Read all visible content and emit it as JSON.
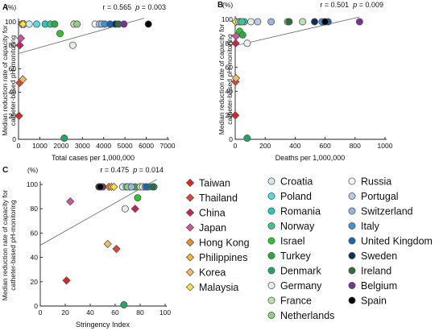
{
  "figure": {
    "ylabel_line1": "Median reduction rate of capacity for",
    "ylabel_line2": "catheter-based pH-monitoring",
    "y_unit": "(%)",
    "stat_r_label": "r = ",
    "stat_p_label": "p",
    "stat_p_eq": " = "
  },
  "colors": {
    "Taiwan": "#e8201e",
    "Thailand": "#e2452f",
    "China": "#cf1d5a",
    "Japan": "#d2539f",
    "Hong Kong": "#f08c21",
    "Philippines": "#f6b33a",
    "Korea": "#f3bb66",
    "Malaysia": "#f6e447",
    "Croatia": "#c9eff2",
    "Poland": "#58d6e2",
    "Romania": "#27c9b8",
    "Norway": "#36c78d",
    "Israel": "#2ec431",
    "Turkey": "#2aa945",
    "Denmark": "#21a565",
    "Germany": "#e4f0e0",
    "France": "#bde0ab",
    "Netherlands": "#8fcf82",
    "Russia": "#f2f2f2",
    "Portugal": "#b8cbe6",
    "Switzerland": "#97b5df",
    "Italy": "#3f93d3",
    "United Kingdom": "#1f63ad",
    "Sweden": "#0f2e57",
    "Ireland": "#2e6e3a",
    "Belgium": "#7a3295",
    "Spain": "#000000"
  },
  "legend": {
    "col1": [
      {
        "name": "Taiwan",
        "shape": "diamond"
      },
      {
        "name": "Thailand",
        "shape": "diamond"
      },
      {
        "name": "China",
        "shape": "diamond"
      },
      {
        "name": "Japan",
        "shape": "diamond"
      },
      {
        "name": "Hong Kong",
        "shape": "diamond"
      },
      {
        "name": "Philippines",
        "shape": "diamond"
      },
      {
        "name": "Korea",
        "shape": "diamond"
      },
      {
        "name": "Malaysia",
        "shape": "diamond"
      }
    ],
    "col2": [
      {
        "name": "Croatia",
        "shape": "circle"
      },
      {
        "name": "Poland",
        "shape": "circle"
      },
      {
        "name": "Romania",
        "shape": "circle"
      },
      {
        "name": "Norway",
        "shape": "circle"
      },
      {
        "name": "Israel",
        "shape": "circle"
      },
      {
        "name": "Turkey",
        "shape": "circle"
      },
      {
        "name": "Denmark",
        "shape": "circle"
      },
      {
        "name": "Germany",
        "shape": "circle"
      },
      {
        "name": "France",
        "shape": "circle"
      },
      {
        "name": "Netherlands",
        "shape": "circle"
      }
    ],
    "col3": [
      {
        "name": "Russia",
        "shape": "circle"
      },
      {
        "name": "Portugal",
        "shape": "circle"
      },
      {
        "name": "Switzerland",
        "shape": "circle"
      },
      {
        "name": "Italy",
        "shape": "circle"
      },
      {
        "name": "United Kingdom",
        "shape": "circle"
      },
      {
        "name": "Sweden",
        "shape": "circle"
      },
      {
        "name": "Ireland",
        "shape": "circle"
      },
      {
        "name": "Belgium",
        "shape": "circle"
      },
      {
        "name": "Spain",
        "shape": "circle"
      }
    ]
  },
  "chart_data": [
    {
      "type": "scatter",
      "panel": "A",
      "xlabel": "Total cases per 1,000,000",
      "ylabel": "Median reduction rate of capacity for catheter-based pH-monitoring",
      "xlim": [
        0,
        7000
      ],
      "ylim": [
        0,
        100
      ],
      "xticks": [
        0,
        1000,
        2000,
        3000,
        4000,
        5000,
        6000,
        7000
      ],
      "yticks": [
        0,
        20,
        40,
        60,
        80,
        100
      ],
      "r": "0.565",
      "p": "0.003",
      "regression": {
        "x": [
          0,
          5900
        ],
        "y": [
          73,
          103
        ]
      },
      "points": [
        {
          "country": "Taiwan",
          "x": 20,
          "y": 20
        },
        {
          "country": "Thailand",
          "x": 50,
          "y": 48
        },
        {
          "country": "China",
          "x": 60,
          "y": 80
        },
        {
          "country": "Japan",
          "x": 110,
          "y": 86
        },
        {
          "country": "Hong Kong",
          "x": 140,
          "y": 98
        },
        {
          "country": "Philippines",
          "x": 280,
          "y": 98
        },
        {
          "country": "Korea",
          "x": 200,
          "y": 51
        },
        {
          "country": "Malaysia",
          "x": 210,
          "y": 98
        },
        {
          "country": "Croatia",
          "x": 500,
          "y": 98
        },
        {
          "country": "Poland",
          "x": 850,
          "y": 98
        },
        {
          "country": "Romania",
          "x": 1250,
          "y": 98
        },
        {
          "country": "Norway",
          "x": 1500,
          "y": 98
        },
        {
          "country": "Israel",
          "x": 1950,
          "y": 90
        },
        {
          "country": "Turkey",
          "x": 1700,
          "y": 98
        },
        {
          "country": "Denmark",
          "x": 2150,
          "y": 1
        },
        {
          "country": "Germany",
          "x": 2550,
          "y": 80
        },
        {
          "country": "France",
          "x": 2600,
          "y": 98
        },
        {
          "country": "Netherlands",
          "x": 2750,
          "y": 98
        },
        {
          "country": "Russia",
          "x": 3600,
          "y": 98
        },
        {
          "country": "Portugal",
          "x": 3800,
          "y": 98
        },
        {
          "country": "Switzerland",
          "x": 3900,
          "y": 98
        },
        {
          "country": "Italy",
          "x": 4050,
          "y": 98
        },
        {
          "country": "United Kingdom",
          "x": 4300,
          "y": 98
        },
        {
          "country": "Sweden",
          "x": 4550,
          "y": 98
        },
        {
          "country": "Ireland",
          "x": 4700,
          "y": 98
        },
        {
          "country": "Belgium",
          "x": 4950,
          "y": 98
        },
        {
          "country": "Spain",
          "x": 6100,
          "y": 98
        }
      ]
    },
    {
      "type": "scatter",
      "panel": "B",
      "xlabel": "Deaths per 1,000,000",
      "ylabel": "Median reduction rate of capacity for catheter-based pH-monitoring",
      "xlim": [
        0,
        1000
      ],
      "ylim": [
        0,
        100
      ],
      "xticks": [
        0,
        200,
        400,
        600,
        800,
        1000
      ],
      "yticks": [
        0,
        20,
        40,
        60,
        80,
        100
      ],
      "r": "0.501",
      "p": "0.009",
      "regression": {
        "x": [
          0,
          830
        ],
        "y": [
          78,
          102
        ]
      },
      "points": [
        {
          "country": "Taiwan",
          "x": 1,
          "y": 20
        },
        {
          "country": "Thailand",
          "x": 2,
          "y": 48
        },
        {
          "country": "China",
          "x": 3,
          "y": 80
        },
        {
          "country": "Japan",
          "x": 6,
          "y": 86
        },
        {
          "country": "Hong Kong",
          "x": 4,
          "y": 98
        },
        {
          "country": "Philippines",
          "x": 7,
          "y": 98
        },
        {
          "country": "Korea",
          "x": 5,
          "y": 51
        },
        {
          "country": "Malaysia",
          "x": 4,
          "y": 98
        },
        {
          "country": "Croatia",
          "x": 25,
          "y": 98
        },
        {
          "country": "Poland",
          "x": 35,
          "y": 98
        },
        {
          "country": "Romania",
          "x": 60,
          "y": 98
        },
        {
          "country": "Norway",
          "x": 45,
          "y": 98
        },
        {
          "country": "Israel",
          "x": 30,
          "y": 90
        },
        {
          "country": "Turkey",
          "x": 50,
          "y": 87
        },
        {
          "country": "Denmark",
          "x": 80,
          "y": 1
        },
        {
          "country": "Germany",
          "x": 105,
          "y": 98
        },
        {
          "country": "France",
          "x": 450,
          "y": 98
        },
        {
          "country": "Netherlands",
          "x": 350,
          "y": 98
        },
        {
          "country": "Russia",
          "x": 80,
          "y": 80
        },
        {
          "country": "Portugal",
          "x": 150,
          "y": 98
        },
        {
          "country": "Switzerland",
          "x": 240,
          "y": 98
        },
        {
          "country": "Italy",
          "x": 580,
          "y": 98
        },
        {
          "country": "United Kingdom",
          "x": 620,
          "y": 98
        },
        {
          "country": "Sweden",
          "x": 530,
          "y": 98
        },
        {
          "country": "Ireland",
          "x": 360,
          "y": 98
        },
        {
          "country": "Belgium",
          "x": 830,
          "y": 98
        },
        {
          "country": "Spain",
          "x": 600,
          "y": 98
        }
      ]
    },
    {
      "type": "scatter",
      "panel": "C",
      "xlabel": "Stringency Index",
      "ylabel": "Median reduction rate of capacity for catheter-based pH-monitoring",
      "xlim": [
        0,
        100
      ],
      "ylim": [
        0,
        100
      ],
      "xticks": [
        0,
        20,
        40,
        60,
        80,
        100
      ],
      "yticks": [
        0,
        20,
        40,
        60,
        80,
        100
      ],
      "r": "0.475",
      "p": "0.014",
      "regression": {
        "x": [
          0,
          100
        ],
        "y": [
          50,
          108
        ]
      },
      "points": [
        {
          "country": "Taiwan",
          "x": 21,
          "y": 21
        },
        {
          "country": "Thailand",
          "x": 61,
          "y": 47
        },
        {
          "country": "China",
          "x": 76,
          "y": 80
        },
        {
          "country": "Japan",
          "x": 24,
          "y": 86
        },
        {
          "country": "Hong Kong",
          "x": 55,
          "y": 98
        },
        {
          "country": "Philippines",
          "x": 57,
          "y": 98
        },
        {
          "country": "Korea",
          "x": 54,
          "y": 51
        },
        {
          "country": "Malaysia",
          "x": 59,
          "y": 98
        },
        {
          "country": "Croatia",
          "x": 66,
          "y": 98
        },
        {
          "country": "Poland",
          "x": 69,
          "y": 98
        },
        {
          "country": "Romania",
          "x": 87,
          "y": 98
        },
        {
          "country": "Norway",
          "x": 72,
          "y": 98
        },
        {
          "country": "Israel",
          "x": 78,
          "y": 89
        },
        {
          "country": "Turkey",
          "x": 76,
          "y": 98
        },
        {
          "country": "Denmark",
          "x": 67,
          "y": 1
        },
        {
          "country": "Germany",
          "x": 68,
          "y": 80
        },
        {
          "country": "France",
          "x": 80,
          "y": 98
        },
        {
          "country": "Netherlands",
          "x": 70,
          "y": 98
        },
        {
          "country": "Russia",
          "x": 82,
          "y": 98
        },
        {
          "country": "Portugal",
          "x": 84,
          "y": 98
        },
        {
          "country": "Switzerland",
          "x": 73,
          "y": 98
        },
        {
          "country": "Italy",
          "x": 91,
          "y": 98
        },
        {
          "country": "United Kingdom",
          "x": 85,
          "y": 98
        },
        {
          "country": "Sweden",
          "x": 47,
          "y": 98
        },
        {
          "country": "Ireland",
          "x": 90,
          "y": 98
        },
        {
          "country": "Belgium",
          "x": 50,
          "y": 98
        },
        {
          "country": "Spain",
          "x": 48,
          "y": 98
        }
      ]
    }
  ]
}
